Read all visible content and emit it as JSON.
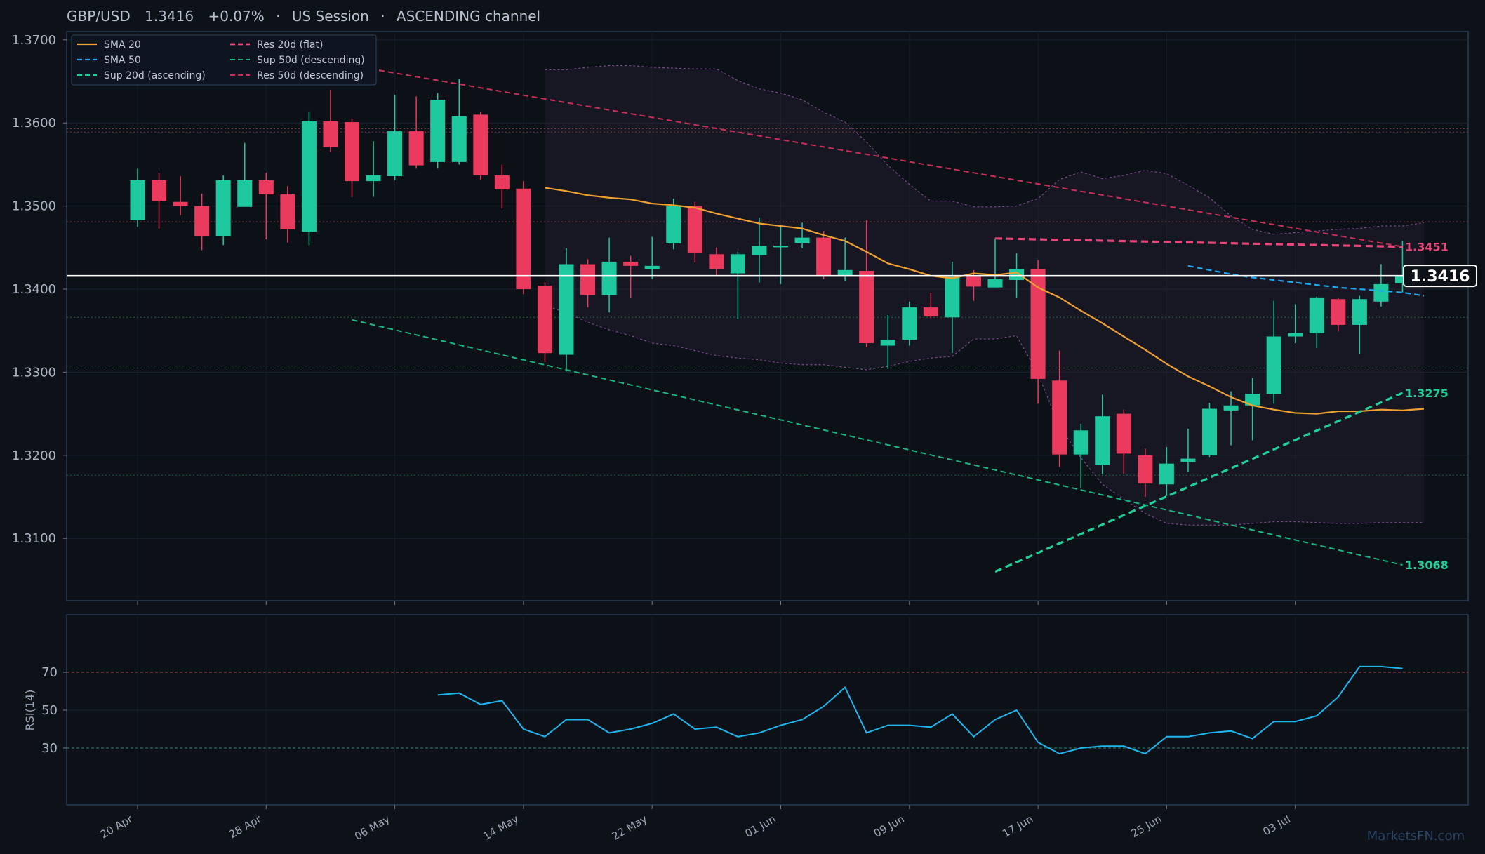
{
  "header": {
    "pair": "GBP/USD",
    "price": "1.3416",
    "change": "+0.07%",
    "session": "US Session",
    "channel": "ASCENDING channel",
    "sep": "·"
  },
  "watermark": "MarketsFN.com",
  "colors": {
    "background": "#0d1118",
    "up": "#1fc9a0",
    "down": "#ea3a5d",
    "sma20": "#f0a030",
    "sma50": "#1ea8f0",
    "res": "#e8457a",
    "sup": "#1fd19a",
    "rsi": "#1eb6f0",
    "bb": "#7a4a8a"
  },
  "chart_data": [
    {
      "type": "candlestick",
      "title": "GBP/USD",
      "ylim": [
        1.3025,
        1.371
      ],
      "yticks": [
        "1.3100",
        "1.3200",
        "1.3300",
        "1.3400",
        "1.3500",
        "1.3600",
        "1.3700"
      ],
      "xticks": [
        {
          "label": "20 Apr",
          "i": 0
        },
        {
          "label": "28 Apr",
          "i": 6
        },
        {
          "label": "06 May",
          "i": 12
        },
        {
          "label": "14 May",
          "i": 18
        },
        {
          "label": "22 May",
          "i": 24
        },
        {
          "label": "01 Jun",
          "i": 30
        },
        {
          "label": "09 Jun",
          "i": 36
        },
        {
          "label": "17 Jun",
          "i": 42
        },
        {
          "label": "25 Jun",
          "i": 48
        },
        {
          "label": "03 Jul",
          "i": 54
        }
      ],
      "candles": [
        [
          1.3483,
          1.3531,
          1.3475,
          1.3545
        ],
        [
          1.3531,
          1.3506,
          1.3473,
          1.354
        ],
        [
          1.3505,
          1.35,
          1.3489,
          1.3536
        ],
        [
          1.35,
          1.3464,
          1.3447,
          1.3515
        ],
        [
          1.3464,
          1.3531,
          1.3453,
          1.3537
        ],
        [
          1.3499,
          1.3531,
          1.35,
          1.3576
        ],
        [
          1.3531,
          1.3514,
          1.346,
          1.354
        ],
        [
          1.3514,
          1.3472,
          1.3456,
          1.3524
        ],
        [
          1.3469,
          1.3602,
          1.3453,
          1.3613
        ],
        [
          1.3602,
          1.3571,
          1.3565,
          1.364
        ],
        [
          1.3601,
          1.353,
          1.3511,
          1.3605
        ],
        [
          1.353,
          1.3537,
          1.3511,
          1.3578
        ],
        [
          1.3536,
          1.359,
          1.3531,
          1.3634
        ],
        [
          1.359,
          1.3549,
          1.3545,
          1.3632
        ],
        [
          1.3553,
          1.3628,
          1.3545,
          1.3636
        ],
        [
          1.3553,
          1.3608,
          1.355,
          1.3653
        ],
        [
          1.361,
          1.3537,
          1.3532,
          1.3613
        ],
        [
          1.3537,
          1.352,
          1.3497,
          1.355
        ],
        [
          1.3521,
          1.34,
          1.3394,
          1.353
        ],
        [
          1.3404,
          1.3323,
          1.3312,
          1.3408
        ],
        [
          1.3321,
          1.343,
          1.3301,
          1.3449
        ],
        [
          1.343,
          1.3393,
          1.3378,
          1.3436
        ],
        [
          1.3393,
          1.3433,
          1.3372,
          1.3462
        ],
        [
          1.3433,
          1.3428,
          1.339,
          1.344
        ],
        [
          1.3424,
          1.3428,
          1.3412,
          1.3463
        ],
        [
          1.3455,
          1.35,
          1.3448,
          1.3509
        ],
        [
          1.35,
          1.3444,
          1.3432,
          1.3505
        ],
        [
          1.3442,
          1.3424,
          1.3417,
          1.345
        ],
        [
          1.3419,
          1.3442,
          1.3364,
          1.3445
        ],
        [
          1.3441,
          1.3452,
          1.3408,
          1.3486
        ],
        [
          1.3451,
          1.3452,
          1.3406,
          1.3477
        ],
        [
          1.3455,
          1.3462,
          1.3449,
          1.348
        ],
        [
          1.3462,
          1.3416,
          1.3412,
          1.347
        ],
        [
          1.3416,
          1.3423,
          1.341,
          1.3462
        ],
        [
          1.3422,
          1.3335,
          1.333,
          1.3483
        ],
        [
          1.3332,
          1.3339,
          1.3304,
          1.3369
        ],
        [
          1.3339,
          1.3378,
          1.3332,
          1.3385
        ],
        [
          1.3378,
          1.3367,
          1.3365,
          1.3396
        ],
        [
          1.3366,
          1.3415,
          1.3323,
          1.3433
        ],
        [
          1.3415,
          1.3403,
          1.3386,
          1.3423
        ],
        [
          1.3402,
          1.3412,
          1.3402,
          1.3461
        ],
        [
          1.3411,
          1.3424,
          1.339,
          1.3443
        ],
        [
          1.3424,
          1.3292,
          1.3262,
          1.3435
        ],
        [
          1.329,
          1.3201,
          1.3186,
          1.3326
        ],
        [
          1.3201,
          1.323,
          1.316,
          1.3238
        ],
        [
          1.3188,
          1.3247,
          1.3177,
          1.3273
        ],
        [
          1.325,
          1.3202,
          1.3178,
          1.3255
        ],
        [
          1.32,
          1.3166,
          1.315,
          1.3208
        ],
        [
          1.3165,
          1.319,
          1.3151,
          1.321
        ],
        [
          1.3192,
          1.3196,
          1.318,
          1.3232
        ],
        [
          1.32,
          1.3256,
          1.3198,
          1.3263
        ],
        [
          1.3254,
          1.326,
          1.3212,
          1.3277
        ],
        [
          1.326,
          1.3274,
          1.3218,
          1.3293
        ],
        [
          1.3274,
          1.3343,
          1.3262,
          1.3386
        ],
        [
          1.3343,
          1.3347,
          1.3335,
          1.3382
        ],
        [
          1.3347,
          1.339,
          1.3329,
          1.3391
        ],
        [
          1.3388,
          1.3357,
          1.3349,
          1.339
        ],
        [
          1.3357,
          1.3388,
          1.3322,
          1.3392
        ],
        [
          1.3385,
          1.3406,
          1.3379,
          1.343
        ],
        [
          1.3407,
          1.3416,
          1.3396,
          1.3458
        ]
      ],
      "last_price": 1.3416,
      "last_label": "1.3416",
      "series": [
        {
          "name": "SMA 20",
          "style": "solid",
          "start": 19,
          "values": [
            1.3522,
            1.3518,
            1.3513,
            1.351,
            1.3508,
            1.3503,
            1.3501,
            1.3498,
            1.3491,
            1.3485,
            1.3479,
            1.3476,
            1.3473,
            1.3465,
            1.3458,
            1.3445,
            1.3431,
            1.3424,
            1.3416,
            1.3413,
            1.3419,
            1.3417,
            1.342,
            1.3402,
            1.339,
            1.3374,
            1.3359,
            1.3343,
            1.3327,
            1.331,
            1.3295,
            1.3283,
            1.327,
            1.326,
            1.3255,
            1.3251,
            1.325,
            1.3253,
            1.3253,
            1.3255,
            1.3254,
            1.3256
          ]
        },
        {
          "name": "SMA 50",
          "style": "dashed",
          "start": 49,
          "values": [
            1.3428,
            1.3423,
            1.3418,
            1.3414,
            1.3411,
            1.3408,
            1.3405,
            1.3402,
            1.34,
            1.3398,
            1.3396,
            1.3392
          ]
        },
        {
          "name": "Sup 20d (ascending)",
          "style": "dashed",
          "start": 40,
          "values": [
            1.306,
            1.3275
          ]
        },
        {
          "name": "Sup 50d (descending)",
          "style": "dashed",
          "start": 10,
          "values": [
            1.3363,
            1.3068
          ]
        },
        {
          "name": "Res 20d (flat)",
          "style": "dashed",
          "start": 40,
          "values": [
            1.3461,
            1.3451
          ]
        },
        {
          "name": "Res 50d (descending)",
          "style": "dashed",
          "start": 10,
          "values": [
            1.3669,
            1.3451
          ]
        }
      ],
      "bollinger": {
        "start": 19,
        "upper": [
          1.3664,
          1.3664,
          1.3667,
          1.3669,
          1.3669,
          1.3667,
          1.3666,
          1.3665,
          1.3665,
          1.3651,
          1.3641,
          1.3636,
          1.3628,
          1.3613,
          1.3601,
          1.3577,
          1.3549,
          1.3526,
          1.3506,
          1.3506,
          1.3499,
          1.3499,
          1.35,
          1.3509,
          1.3532,
          1.3541,
          1.3533,
          1.3537,
          1.3543,
          1.3539,
          1.3525,
          1.351,
          1.3488,
          1.3472,
          1.3466,
          1.3468,
          1.347,
          1.3472,
          1.3473,
          1.3476,
          1.3476,
          1.348
        ],
        "lower": [
          1.338,
          1.3372,
          1.336,
          1.3351,
          1.3344,
          1.3335,
          1.3332,
          1.3326,
          1.332,
          1.3317,
          1.3315,
          1.3311,
          1.3309,
          1.3309,
          1.3306,
          1.3303,
          1.3307,
          1.3313,
          1.3317,
          1.3319,
          1.334,
          1.334,
          1.3344,
          1.3298,
          1.3235,
          1.3197,
          1.3165,
          1.3147,
          1.313,
          1.3118,
          1.3116,
          1.3116,
          1.3116,
          1.3118,
          1.312,
          1.312,
          1.3119,
          1.3118,
          1.3118,
          1.3119,
          1.3119,
          1.3119
        ]
      },
      "hlines": [
        {
          "y": 1.3593,
          "color": "#a0404a"
        },
        {
          "y": 1.3589,
          "color": "#a0404a"
        },
        {
          "y": 1.3481,
          "color": "#a0404a"
        },
        {
          "y": 1.3366,
          "color": "#2a7a4a"
        },
        {
          "y": 1.3305,
          "color": "#2a7a4a"
        },
        {
          "y": 1.3176,
          "color": "#2a7a4a"
        }
      ],
      "level_labels": [
        {
          "label": "1.3451",
          "y": 1.3451,
          "color": "#e8457a"
        },
        {
          "label": "1.3275",
          "y": 1.3275,
          "color": "#1fd19a"
        },
        {
          "label": "1.3068",
          "y": 1.3068,
          "color": "#1fd19a"
        }
      ]
    },
    {
      "type": "line",
      "ylabel": "RSI(14)",
      "ylim": [
        0,
        100
      ],
      "yticks": [
        30,
        50,
        70
      ],
      "start": 14,
      "values": [
        58,
        59,
        53,
        55,
        40,
        36,
        45,
        45,
        38,
        40,
        43,
        48,
        40,
        41,
        36,
        38,
        42,
        45,
        52,
        62,
        38,
        42,
        42,
        41,
        48,
        36,
        45,
        50,
        33,
        27,
        30,
        31,
        31,
        27,
        36,
        36,
        38,
        39,
        35,
        44,
        44,
        47,
        57,
        73,
        73,
        72
      ]
    }
  ]
}
